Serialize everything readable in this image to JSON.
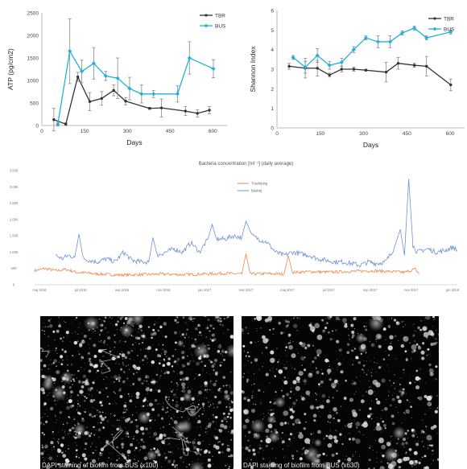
{
  "chart_data": [
    {
      "type": "line",
      "title": "",
      "xlabel": "Days",
      "ylabel": "ATP (pg/cm2)",
      "xlim": [
        0,
        650
      ],
      "ylim": [
        0,
        2500
      ],
      "xticks": [
        0,
        150,
        300,
        450,
        600
      ],
      "yticks": [
        0,
        500,
        1000,
        1500,
        2000,
        2500
      ],
      "legend_position": "top-right",
      "grid": false,
      "series": [
        {
          "name": "TBR",
          "color": "#333333",
          "x": [
            42,
            84,
            126,
            168,
            210,
            252,
            294,
            378,
            420,
            504,
            546,
            588
          ],
          "y": [
            130,
            30,
            1080,
            530,
            600,
            780,
            540,
            380,
            390,
            320,
            270,
            340
          ],
          "err": [
            250,
            30,
            100,
            200,
            150,
            120,
            80,
            20,
            200,
            100,
            80,
            80
          ]
        },
        {
          "name": "BUS",
          "color": "#1fb2d9",
          "x": [
            56,
            98,
            140,
            182,
            224,
            266,
            308,
            350,
            392,
            476,
            518,
            602
          ],
          "y": [
            30,
            1650,
            1200,
            1380,
            1100,
            1050,
            820,
            700,
            700,
            700,
            1500,
            1260
          ],
          "err": [
            40,
            720,
            250,
            350,
            100,
            450,
            250,
            200,
            80,
            180,
            360,
            200
          ]
        }
      ]
    },
    {
      "type": "line",
      "title": "",
      "xlabel": "Days",
      "ylabel": "Shannon Index",
      "xlim": [
        0,
        650
      ],
      "ylim": [
        0,
        6
      ],
      "xticks": [
        0,
        150,
        300,
        450,
        600
      ],
      "yticks": [
        0,
        1,
        2,
        3,
        4,
        5,
        6
      ],
      "legend_position": "top-right",
      "grid": false,
      "series": [
        {
          "name": "TBR",
          "color": "#333333",
          "x": [
            42,
            98,
            140,
            182,
            224,
            266,
            308,
            378,
            420,
            476,
            518,
            602
          ],
          "y": [
            3.15,
            3.05,
            3.05,
            2.7,
            3.0,
            3.0,
            2.95,
            2.85,
            3.3,
            3.2,
            3.15,
            2.2
          ],
          "err": [
            0.15,
            0.5,
            0.4,
            0.1,
            0.15,
            0.1,
            0.05,
            0.5,
            0.3,
            0.1,
            0.5,
            0.3
          ]
        },
        {
          "name": "BUS",
          "color": "#1fb2d9",
          "x": [
            56,
            98,
            140,
            182,
            224,
            266,
            308,
            350,
            392,
            434,
            476,
            518,
            602
          ],
          "y": [
            3.6,
            3.1,
            3.7,
            3.2,
            3.35,
            4.0,
            4.6,
            4.4,
            4.4,
            4.85,
            5.1,
            4.6,
            4.9
          ],
          "err": [
            0.1,
            0.3,
            0.35,
            0.2,
            0.2,
            0.15,
            0.1,
            0.3,
            0.3,
            0.1,
            0.1,
            0.1,
            0.1
          ]
        }
      ]
    },
    {
      "type": "line",
      "title": "Bacteria concentration [ml⁻¹] (daily average)",
      "xlabel": "",
      "ylabel": "",
      "ylim": [
        0,
        3500
      ],
      "yticks": [
        0,
        500,
        1000,
        1500,
        2000,
        2500,
        3000,
        3500
      ],
      "ytick_labels": [
        "0",
        "500",
        "1.000",
        "1.500",
        "2.000",
        "2.500",
        "3.000",
        "3.500"
      ],
      "xtick_labels": [
        "maj 2016",
        "jul 2016",
        "sep 2016",
        "nov 2016",
        "jan 2017",
        "mar 2017",
        "maj 2017",
        "jul 2017",
        "sep 2017",
        "nov 2017",
        "jan 2018"
      ],
      "xlim": [
        0,
        20
      ],
      "legend_position": "top-center",
      "grid": false,
      "series": [
        {
          "name": "Truekilping",
          "color": "#f0874a",
          "x": [
            0,
            0.5,
            1,
            1.5,
            2,
            2.5,
            3,
            4,
            5,
            6,
            7,
            8,
            9,
            9.8,
            10,
            10.2,
            11,
            11.8,
            12,
            12.2,
            13,
            14,
            15,
            16,
            17,
            17.5,
            18,
            18.2
          ],
          "y": [
            430,
            500,
            430,
            470,
            380,
            360,
            330,
            300,
            310,
            330,
            310,
            330,
            350,
            330,
            950,
            330,
            340,
            330,
            890,
            380,
            400,
            390,
            410,
            430,
            400,
            380,
            480,
            330
          ]
        },
        {
          "name": "Bushøj",
          "color": "#6f93d6",
          "x": [
            1.0,
            1.3,
            1.6,
            1.9,
            2.1,
            2.3,
            2.6,
            3.0,
            3.4,
            3.8,
            4.2,
            4.6,
            5.0,
            5.4,
            5.6,
            5.8,
            6.2,
            6.6,
            7.0,
            7.4,
            7.8,
            8.2,
            8.4,
            8.6,
            9.0,
            9.4,
            9.8,
            10.0,
            10.3,
            10.6,
            11.0,
            11.4,
            11.8,
            12.2,
            12.6,
            13.0,
            13.4,
            13.8,
            14.2,
            14.6,
            15.0,
            15.4,
            15.8,
            16.2,
            16.6,
            17.0,
            17.3,
            17.5,
            17.7,
            17.9,
            18.1,
            18.3,
            18.6,
            19.0,
            19.4,
            19.8,
            20.0
          ],
          "y": [
            900,
            800,
            900,
            850,
            1550,
            800,
            750,
            700,
            800,
            700,
            1000,
            750,
            700,
            700,
            1450,
            900,
            1000,
            1100,
            1000,
            1300,
            1000,
            1400,
            1850,
            1400,
            1400,
            1500,
            1450,
            1950,
            1500,
            1400,
            1300,
            1000,
            900,
            1000,
            950,
            900,
            800,
            750,
            700,
            700,
            650,
            600,
            700,
            650,
            700,
            1100,
            1700,
            900,
            3250,
            1200,
            1000,
            1050,
            1100,
            1000,
            1050,
            1150,
            1050
          ]
        }
      ]
    }
  ],
  "images": [
    {
      "caption": "DAPI staining of biofilm from BUS (x100)"
    },
    {
      "caption": "DAPI staining of biofilm from BUS (x630)"
    }
  ]
}
